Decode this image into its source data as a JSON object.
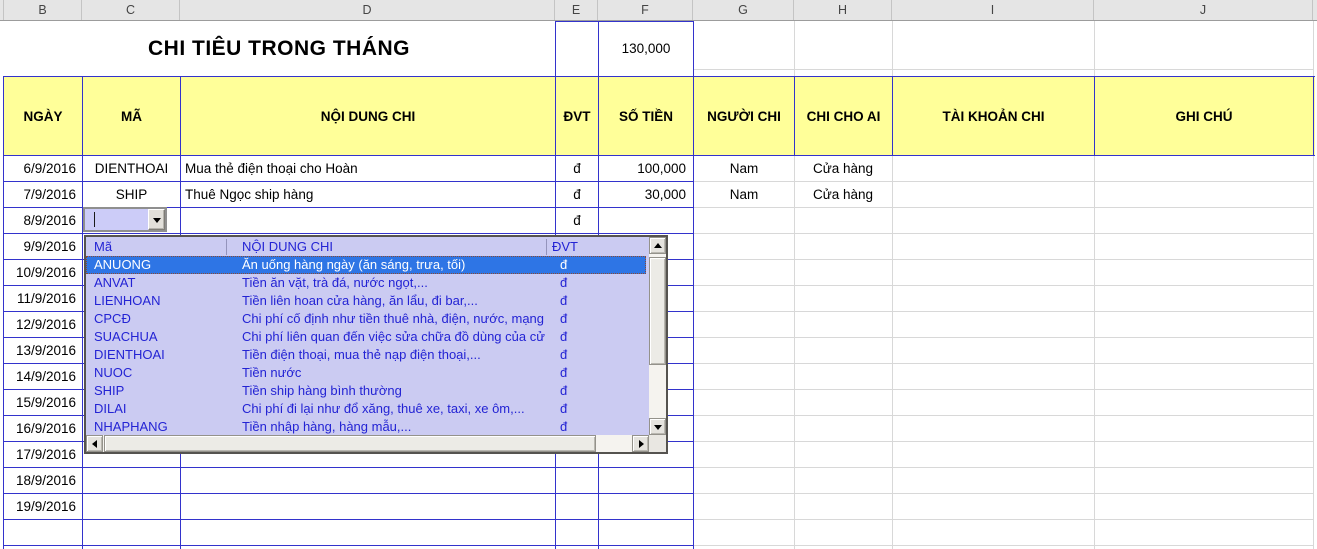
{
  "columns": [
    "B",
    "C",
    "D",
    "E",
    "F",
    "G",
    "H",
    "I",
    "J"
  ],
  "title": {
    "text": "CHI TIÊU TRONG THÁNG",
    "total": "130,000"
  },
  "table_headers": {
    "date": "NGÀY",
    "code": "MÃ",
    "desc": "NỘI DUNG CHI",
    "dvt": "ĐVT",
    "amount": "SỐ TIỀN",
    "payer": "NGƯỜI CHI",
    "paid_for": "CHI CHO AI",
    "account": "TÀI KHOẢN CHI",
    "note": "GHI CHÚ"
  },
  "rows": [
    {
      "date": "6/9/2016",
      "code": "DIENTHOAI",
      "desc": "Mua thẻ điện thoại cho Hoàn",
      "dvt": "đ",
      "amount": "100,000",
      "payer": "Nam",
      "paid_for": "Cửa hàng"
    },
    {
      "date": "7/9/2016",
      "code": "SHIP",
      "desc": "Thuê Ngọc ship hàng",
      "dvt": "đ",
      "amount": "30,000",
      "payer": "Nam",
      "paid_for": "Cửa hàng"
    },
    {
      "date": "8/9/2016",
      "code": "",
      "desc": "",
      "dvt": "đ",
      "amount": ""
    },
    {
      "date": "9/9/2016"
    },
    {
      "date": "10/9/2016"
    },
    {
      "date": "11/9/2016"
    },
    {
      "date": "12/9/2016"
    },
    {
      "date": "13/9/2016"
    },
    {
      "date": "14/9/2016"
    },
    {
      "date": "15/9/2016"
    },
    {
      "date": "16/9/2016"
    },
    {
      "date": "17/9/2016"
    },
    {
      "date": "18/9/2016"
    },
    {
      "date": "19/9/2016"
    },
    {
      "date": ""
    }
  ],
  "combo": {
    "value": ""
  },
  "dropdown": {
    "headers": {
      "code": "Mã",
      "desc": "NỘI DUNG CHI",
      "dvt": "ĐVT"
    },
    "selected_index": 0,
    "items": [
      {
        "code": "ANUONG",
        "desc": "Ăn uống hàng ngày (ăn sáng, trưa, tối)",
        "dvt": "đ"
      },
      {
        "code": "ANVAT",
        "desc": "Tiền ăn vặt, trà đá, nước ngọt,...",
        "dvt": "đ"
      },
      {
        "code": "LIENHOAN",
        "desc": "Tiền liên hoan cửa hàng, ăn lẩu, đi bar,...",
        "dvt": "đ"
      },
      {
        "code": "CPCĐ",
        "desc": "Chi phí cố định như tiền thuê nhà, điện, nước, mạng",
        "dvt": "đ"
      },
      {
        "code": "SUACHUA",
        "desc": "Chi phí liên quan đến việc sửa chữa đồ dùng của cử",
        "dvt": "đ"
      },
      {
        "code": "DIENTHOAI",
        "desc": "Tiền điện thoại, mua thẻ nạp điện thoại,...",
        "dvt": "đ"
      },
      {
        "code": "NUOC",
        "desc": "Tiền nước",
        "dvt": "đ"
      },
      {
        "code": "SHIP",
        "desc": "Tiền ship hàng bình thường",
        "dvt": "đ"
      },
      {
        "code": "DILAI",
        "desc": "Chi phí đi lại như đổ xăng, thuê xe, taxi, xe ôm,...",
        "dvt": "đ"
      },
      {
        "code": "NHAPHANG",
        "desc": "Tiền nhập hàng, hàng mẫu,...",
        "dvt": "đ"
      }
    ]
  },
  "colors": {
    "blue_border": "#3333cc",
    "header_fill": "#ffff99",
    "dropdown_fill": "#cbcbf2",
    "dropdown_text": "#2323d4",
    "selection_fill": "#2e75e5",
    "selection_text": "#ffffff",
    "gridline": "#d8d8d8"
  }
}
